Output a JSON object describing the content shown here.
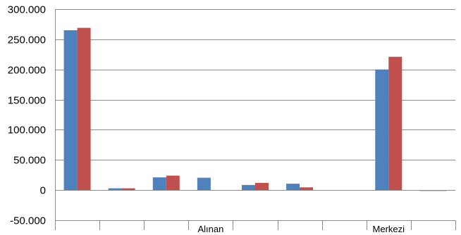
{
  "chart_data": {
    "type": "bar",
    "title": "",
    "xlabel": "",
    "ylabel": "",
    "ylim": [
      -50000,
      300000
    ],
    "yticks": [
      -50000,
      0,
      50000,
      100000,
      150000,
      200000,
      250000,
      300000
    ],
    "ytick_labels": [
      "-50.000",
      "0",
      "50.000",
      "100.000",
      "150.000",
      "200.000",
      "250.000",
      "300.000"
    ],
    "grid": true,
    "categories": [
      "",
      "",
      "",
      "Alınan",
      "",
      "",
      "",
      "Merkezi",
      ""
    ],
    "series": [
      {
        "color": "#4F81BD",
        "values": [
          265000,
          3000,
          21000,
          20500,
          8500,
          10500,
          0,
          200000,
          -1500
        ]
      },
      {
        "color": "#C0504D",
        "values": [
          269000,
          3000,
          24000,
          0,
          12000,
          4500,
          0,
          221000,
          -1500
        ]
      }
    ]
  }
}
